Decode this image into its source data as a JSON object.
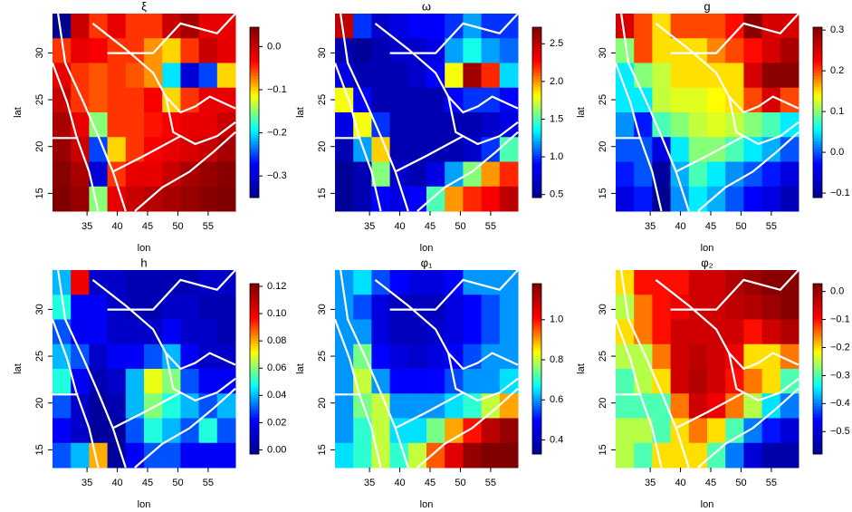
{
  "chart_data": [
    {
      "type": "heatmap",
      "title": "ξ",
      "xlabel": "lon",
      "ylabel": "lat",
      "xlim": [
        29.3,
        59.5
      ],
      "ylim": [
        13.1,
        34.2
      ],
      "xticks": [
        35,
        40,
        45,
        50,
        55
      ],
      "yticks": [
        15,
        20,
        25,
        30
      ],
      "clim": [
        -0.35,
        0.045
      ],
      "cticks": [
        {
          "value": 0,
          "label": "0.0"
        },
        {
          "value": -0.1,
          "label": "−0.1"
        },
        {
          "value": -0.2,
          "label": "−0.2"
        },
        {
          "value": -0.3,
          "label": "−0.3"
        }
      ],
      "colors": [
        "#00008f",
        "#0000ff",
        "#00ffff",
        "#ffff00",
        "#ff0000",
        "#800000"
      ],
      "z": [
        [
          -0.35,
          0.0,
          -0.05,
          -0.02,
          -0.05,
          -0.05,
          0.0,
          0.02,
          -0.02,
          -0.02
        ],
        [
          -0.05,
          -0.02,
          -0.03,
          -0.05,
          -0.05,
          -0.08,
          -0.1,
          -0.05,
          0.0,
          -0.02
        ],
        [
          -0.02,
          -0.05,
          -0.06,
          -0.05,
          -0.06,
          -0.08,
          -0.2,
          -0.3,
          -0.25,
          -0.1
        ],
        [
          0.0,
          -0.05,
          -0.06,
          -0.05,
          -0.05,
          -0.03,
          -0.1,
          -0.05,
          -0.02,
          -0.02
        ],
        [
          0.02,
          -0.02,
          -0.15,
          -0.05,
          -0.05,
          -0.04,
          -0.03,
          -0.02,
          -0.02,
          0.0
        ],
        [
          0.03,
          0.0,
          -0.25,
          -0.1,
          -0.05,
          -0.03,
          -0.02,
          -0.01,
          0.0,
          0.02
        ],
        [
          0.04,
          0.02,
          -0.3,
          -0.05,
          -0.02,
          -0.02,
          0.0,
          0.02,
          0.03,
          0.04
        ],
        [
          0.045,
          0.03,
          -0.15,
          -0.02,
          0.0,
          0.01,
          0.02,
          0.03,
          0.04,
          0.045
        ]
      ]
    },
    {
      "type": "heatmap",
      "title": "ω",
      "xlabel": "lon",
      "ylabel": "lat",
      "xlim": [
        29.3,
        59.5
      ],
      "ylim": [
        13.1,
        34.2
      ],
      "xticks": [
        35,
        40,
        45,
        50,
        55
      ],
      "yticks": [
        15,
        20,
        25,
        30
      ],
      "clim": [
        0.46,
        2.72
      ],
      "cticks": [
        0.5,
        {
          "value": 1,
          "label": "1.0"
        },
        1.5,
        {
          "value": 2,
          "label": "2.0"
        },
        2.5
      ],
      "colors": [
        "#00008f",
        "#0000ff",
        "#00ffff",
        "#ffff00",
        "#ff0000",
        "#800000"
      ],
      "z": [
        [
          2.5,
          1.0,
          0.7,
          0.8,
          0.9,
          0.9,
          1.0,
          1.2,
          1.0,
          1.0
        ],
        [
          0.6,
          0.5,
          0.6,
          0.7,
          0.7,
          0.8,
          1.2,
          1.4,
          1.2,
          1.1
        ],
        [
          0.8,
          0.6,
          0.6,
          0.6,
          0.7,
          0.9,
          1.8,
          2.6,
          2.2,
          1.3
        ],
        [
          1.8,
          0.9,
          0.6,
          0.6,
          0.6,
          0.6,
          0.9,
          1.0,
          1.0,
          0.9
        ],
        [
          0.8,
          1.8,
          1.0,
          0.6,
          0.6,
          0.6,
          0.6,
          0.6,
          0.7,
          0.8
        ],
        [
          0.6,
          1.2,
          1.9,
          0.6,
          0.6,
          0.6,
          0.6,
          0.7,
          1.0,
          1.5
        ],
        [
          0.5,
          0.6,
          1.6,
          0.7,
          0.6,
          0.8,
          1.2,
          1.6,
          2.0,
          2.2
        ],
        [
          0.5,
          0.6,
          0.9,
          0.8,
          0.9,
          1.5,
          2.0,
          2.2,
          2.3,
          2.5
        ]
      ]
    },
    {
      "type": "heatmap",
      "title": "g",
      "xlabel": "lon",
      "ylabel": "lat",
      "xlim": [
        29.3,
        59.5
      ],
      "ylim": [
        13.1,
        34.2
      ],
      "xticks": [
        35,
        40,
        45,
        50,
        55
      ],
      "yticks": [
        15,
        20,
        25,
        30
      ],
      "clim": [
        -0.111,
        0.307
      ],
      "cticks": [
        {
          "value": -0.1,
          "label": "−0.1"
        },
        {
          "value": 0,
          "label": "0.0"
        },
        0.1,
        0.2,
        0.3
      ],
      "colors": [
        "#00008f",
        "#0000ff",
        "#00ffff",
        "#ffff00",
        "#ff0000",
        "#800000"
      ],
      "z": [
        [
          0.25,
          0.2,
          0.15,
          0.2,
          0.2,
          0.2,
          0.22,
          0.3,
          0.25,
          0.25
        ],
        [
          0.1,
          0.2,
          0.15,
          0.15,
          0.15,
          0.18,
          0.2,
          0.22,
          0.25,
          0.28
        ],
        [
          0.05,
          0.1,
          0.12,
          0.15,
          0.15,
          0.15,
          0.15,
          0.25,
          0.3,
          0.3
        ],
        [
          0.05,
          0.05,
          0.12,
          0.13,
          0.13,
          0.14,
          0.15,
          0.2,
          0.25,
          0.2
        ],
        [
          0.02,
          -0.02,
          0.08,
          0.1,
          0.12,
          0.13,
          0.12,
          0.1,
          0.08,
          0.05
        ],
        [
          0.0,
          0.0,
          -0.05,
          0.05,
          0.1,
          0.1,
          0.08,
          0.05,
          0.03,
          0.0
        ],
        [
          -0.02,
          0.0,
          -0.1,
          0.03,
          0.08,
          0.05,
          0.02,
          0.0,
          -0.02,
          -0.05
        ],
        [
          -0.05,
          -0.02,
          -0.11,
          0.02,
          0.05,
          0.03,
          0.0,
          -0.03,
          -0.05,
          -0.08
        ]
      ]
    },
    {
      "type": "heatmap",
      "title": "h",
      "xlabel": "lon",
      "ylabel": "lat",
      "xlim": [
        29.3,
        59.5
      ],
      "ylim": [
        13.1,
        34.2
      ],
      "xticks": [
        35,
        40,
        45,
        50,
        55
      ],
      "yticks": [
        15,
        20,
        25,
        30
      ],
      "clim": [
        -0.003,
        0.122
      ],
      "cticks": [
        {
          "value": 0,
          "label": "0.00"
        },
        0.02,
        0.04,
        0.06,
        0.08,
        {
          "value": 0.1,
          "label": "0.10"
        },
        0.12
      ],
      "colors": [
        "#00008f",
        "#0000ff",
        "#00ffff",
        "#ffff00",
        "#ff0000",
        "#800000"
      ],
      "z": [
        [
          0.04,
          0.1,
          0.01,
          0.01,
          0.005,
          0.005,
          0.005,
          0.005,
          0.01,
          0.01
        ],
        [
          0.05,
          0.02,
          0.02,
          0.01,
          0.005,
          0.005,
          0.01,
          0.01,
          0.005,
          0.005
        ],
        [
          0.03,
          0.02,
          0.02,
          0.01,
          0.01,
          0.01,
          0.02,
          0.01,
          0.01,
          0.005
        ],
        [
          0.04,
          0.03,
          0.01,
          0.02,
          0.02,
          0.03,
          0.04,
          0.02,
          0.01,
          0.01
        ],
        [
          0.05,
          0.02,
          0.005,
          0.01,
          0.04,
          0.07,
          0.06,
          0.03,
          0.02,
          0.02
        ],
        [
          0.03,
          0.01,
          0.0,
          0.005,
          0.04,
          0.06,
          0.05,
          0.04,
          0.03,
          0.04
        ],
        [
          0.02,
          0.01,
          0.0,
          0.0,
          0.03,
          0.05,
          0.04,
          0.03,
          0.05,
          0.03
        ],
        [
          0.03,
          0.04,
          0.08,
          0.0,
          0.02,
          0.03,
          0.03,
          0.02,
          0.02,
          0.02
        ]
      ]
    },
    {
      "type": "heatmap",
      "title": "φ₁",
      "xlabel": "lon",
      "ylabel": "lat",
      "xlim": [
        29.3,
        59.5
      ],
      "ylim": [
        13.1,
        34.2
      ],
      "xticks": [
        35,
        40,
        45,
        50,
        55
      ],
      "yticks": [
        15,
        20,
        25,
        30
      ],
      "clim": [
        0.33,
        1.18
      ],
      "cticks": [
        0.4,
        0.6,
        0.8,
        {
          "value": 1,
          "label": "1.0"
        }
      ],
      "colors": [
        "#00008f",
        "#0000ff",
        "#00ffff",
        "#ffff00",
        "#ff0000",
        "#800000"
      ],
      "z": [
        [
          0.6,
          0.65,
          0.55,
          0.5,
          0.45,
          0.45,
          0.5,
          0.6,
          0.6,
          0.6
        ],
        [
          0.6,
          0.55,
          0.45,
          0.4,
          0.4,
          0.4,
          0.45,
          0.5,
          0.55,
          0.6
        ],
        [
          0.6,
          0.6,
          0.45,
          0.4,
          0.4,
          0.42,
          0.45,
          0.5,
          0.55,
          0.6
        ],
        [
          0.6,
          0.75,
          0.5,
          0.45,
          0.42,
          0.45,
          0.5,
          0.55,
          0.6,
          0.6
        ],
        [
          0.6,
          0.8,
          0.6,
          0.5,
          0.5,
          0.5,
          0.55,
          0.6,
          0.6,
          0.65
        ],
        [
          0.6,
          0.75,
          0.8,
          0.6,
          0.6,
          0.6,
          0.65,
          0.7,
          0.8,
          0.9
        ],
        [
          0.6,
          0.7,
          0.8,
          0.65,
          0.65,
          0.75,
          0.9,
          1.0,
          1.1,
          1.15
        ],
        [
          0.65,
          0.7,
          0.8,
          0.7,
          0.8,
          0.95,
          1.05,
          1.15,
          1.18,
          1.18
        ]
      ]
    },
    {
      "type": "heatmap",
      "title": "φ₂",
      "xlabel": "lon",
      "ylabel": "lat",
      "xlim": [
        29.3,
        59.5
      ],
      "ylim": [
        13.1,
        34.2
      ],
      "xticks": [
        35,
        40,
        45,
        50,
        55
      ],
      "yticks": [
        15,
        20,
        25,
        30
      ],
      "clim": [
        -0.58,
        0.028
      ],
      "cticks": [
        {
          "value": 0,
          "label": "0.0"
        },
        {
          "value": -0.1,
          "label": "−0.1"
        },
        {
          "value": -0.2,
          "label": "−0.2"
        },
        {
          "value": -0.3,
          "label": "−0.3"
        },
        {
          "value": -0.4,
          "label": "−0.4"
        },
        {
          "value": -0.5,
          "label": "−0.5"
        }
      ],
      "colors": [
        "#00008f",
        "#0000ff",
        "#00ffff",
        "#ffff00",
        "#ff0000",
        "#800000"
      ],
      "z": [
        [
          -0.2,
          -0.1,
          -0.1,
          -0.1,
          -0.05,
          -0.05,
          -0.02,
          0.0,
          0.02,
          0.02
        ],
        [
          -0.25,
          -0.15,
          -0.1,
          -0.08,
          -0.05,
          -0.05,
          -0.03,
          -0.02,
          0.0,
          0.02
        ],
        [
          -0.2,
          -0.15,
          -0.1,
          -0.05,
          -0.05,
          -0.05,
          -0.05,
          -0.1,
          -0.05,
          -0.02
        ],
        [
          -0.25,
          -0.25,
          -0.15,
          -0.05,
          -0.03,
          -0.05,
          -0.08,
          -0.2,
          -0.2,
          -0.15
        ],
        [
          -0.3,
          -0.25,
          -0.2,
          -0.05,
          -0.02,
          -0.05,
          -0.1,
          -0.15,
          -0.2,
          -0.3
        ],
        [
          -0.3,
          -0.3,
          -0.3,
          -0.15,
          -0.05,
          -0.08,
          -0.15,
          -0.25,
          -0.35,
          -0.4
        ],
        [
          -0.25,
          -0.25,
          -0.3,
          -0.2,
          -0.15,
          -0.2,
          -0.3,
          -0.4,
          -0.45,
          -0.5
        ],
        [
          -0.25,
          -0.3,
          -0.2,
          -0.2,
          -0.2,
          -0.3,
          -0.4,
          -0.5,
          -0.55,
          -0.55
        ]
      ]
    }
  ]
}
